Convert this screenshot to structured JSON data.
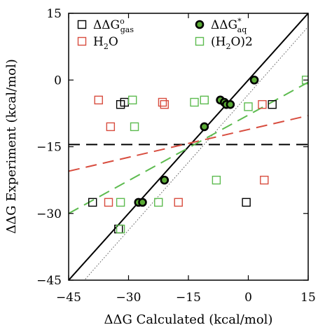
{
  "chart_data": {
    "type": "scatter",
    "xlabel": "ΔΔG Calculated (kcal/mol)",
    "ylabel": "ΔΔG Experiment (kcal/mol)",
    "xlim": [
      -45,
      15
    ],
    "ylim": [
      -45,
      15
    ],
    "xticks": [
      -45,
      -30,
      -15,
      0,
      15
    ],
    "yticks": [
      -45,
      -30,
      -15,
      0,
      15
    ],
    "xtick_labels": [
      "−45",
      "−30",
      "−15",
      "0",
      "15"
    ],
    "ytick_labels": [
      "−45",
      "−30",
      "−15",
      "0",
      "15"
    ],
    "grid": false,
    "legend_position": "top",
    "series": [
      {
        "name": "ΔΔG°gas",
        "legend": {
          "main": "ΔΔG",
          "sup": "o",
          "sub": "gas"
        },
        "marker": "open-square",
        "color": "#000000",
        "points": [
          [
            -31,
            -5
          ],
          [
            -32,
            -5.5
          ],
          [
            6,
            -5.5
          ],
          [
            -0.5,
            -27.5
          ],
          [
            -39,
            -27.5
          ],
          [
            -32.5,
            -33.5
          ]
        ]
      },
      {
        "name": "ΔΔG*aq",
        "legend": {
          "main": "ΔΔG",
          "sup": "*",
          "sub": "aq"
        },
        "marker": "filled-circle",
        "color": "#5aaa35",
        "edge_color": "#000000",
        "points": [
          [
            1.5,
            0
          ],
          [
            -7,
            -4.5
          ],
          [
            -6,
            -5
          ],
          [
            -5.5,
            -5.5
          ],
          [
            -4.5,
            -5.5
          ],
          [
            -11,
            -10.5
          ],
          [
            -21,
            -22.5
          ],
          [
            -27.5,
            -27.5
          ],
          [
            -26.5,
            -27.5
          ]
        ]
      },
      {
        "name": "H2O",
        "legend": {
          "main": "H",
          "sub": "2",
          "tail": "O"
        },
        "marker": "open-square",
        "color": "#d84d3f",
        "points": [
          [
            -37.5,
            -4.5
          ],
          [
            -21.5,
            -5
          ],
          [
            -21,
            -5.5
          ],
          [
            3.5,
            -5.5
          ],
          [
            -34.5,
            -10.5
          ],
          [
            -35,
            -27.5
          ],
          [
            -17.5,
            -27.5
          ],
          [
            4,
            -22.5
          ]
        ]
      },
      {
        "name": "(H2O)2",
        "legend": {
          "main": "(H",
          "sub": "2",
          "tail": "O)",
          "tail_sub": "2"
        },
        "marker": "open-square",
        "color": "#5dbb4f",
        "points": [
          [
            -29,
            -4.5
          ],
          [
            -13.5,
            -5
          ],
          [
            -11,
            -4.5
          ],
          [
            0,
            -6
          ],
          [
            14.5,
            0
          ],
          [
            -28.5,
            -10.5
          ],
          [
            -8,
            -22.5
          ],
          [
            -22.5,
            -27.5
          ],
          [
            -32,
            -27.5
          ],
          [
            -32,
            -33.5
          ]
        ]
      }
    ],
    "lines": [
      {
        "style": "solid",
        "color": "#000000",
        "points": [
          [
            -45,
            -45
          ],
          [
            15,
            15
          ]
        ]
      },
      {
        "style": "dotted",
        "color": "#555555",
        "points": [
          [
            -45,
            -49
          ],
          [
            15,
            12
          ]
        ]
      },
      {
        "style": "dashed",
        "color": "#000000",
        "points": [
          [
            -45,
            -14.5
          ],
          [
            15,
            -14.5
          ]
        ]
      },
      {
        "style": "dashed",
        "color": "#d84d3f",
        "points": [
          [
            -45,
            -20.5
          ],
          [
            15,
            -8
          ]
        ]
      },
      {
        "style": "dashed",
        "color": "#5dbb4f",
        "points": [
          [
            -45,
            -30
          ],
          [
            15,
            -0.5
          ]
        ]
      }
    ]
  }
}
